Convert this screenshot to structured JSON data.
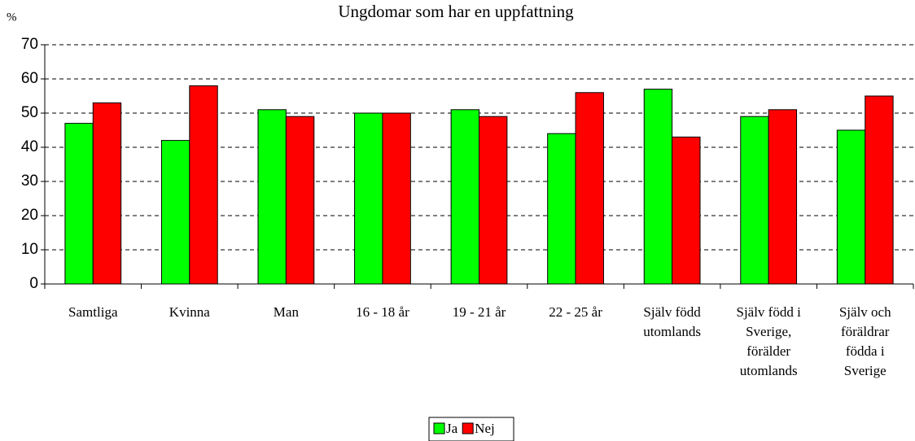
{
  "chart_data": {
    "type": "bar",
    "title": "Ungdomar som har en uppfattning",
    "y_label": "%",
    "categories": [
      "Samtliga",
      "Kvinna",
      "Man",
      "16 - 18 år",
      "19 - 21 år",
      "22 - 25 år",
      "Själv född\nutomlands",
      "Själv född i\nSverige,\nförälder\nutomlands",
      "Själv och\nföräldrar\nfödda i\nSverige"
    ],
    "series": [
      {
        "name": "Ja",
        "color": "#00ff00",
        "values": [
          47,
          42,
          51,
          50,
          51,
          44,
          57,
          49,
          45
        ]
      },
      {
        "name": "Nej",
        "color": "#ff0000",
        "values": [
          53,
          58,
          49,
          50,
          49,
          56,
          43,
          51,
          55
        ]
      }
    ],
    "ylim": [
      0,
      70
    ],
    "yticks": [
      0,
      10,
      20,
      30,
      40,
      50,
      60,
      70
    ],
    "grid": true,
    "legend": "bottom"
  }
}
